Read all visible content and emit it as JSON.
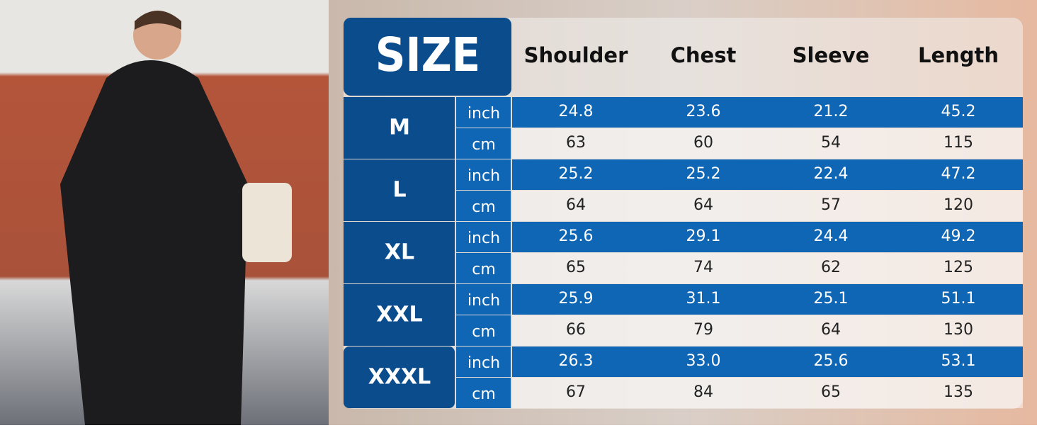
{
  "header": {
    "title": "SIZE",
    "columns": [
      "Shoulder",
      "Chest",
      "Sleeve",
      "Length"
    ]
  },
  "sizes": [
    {
      "label": "M",
      "rows": [
        {
          "unit": "inch",
          "values": [
            "24.8",
            "23.6",
            "21.2",
            "45.2"
          ]
        },
        {
          "unit": "cm",
          "values": [
            "63",
            "60",
            "54",
            "115"
          ]
        }
      ]
    },
    {
      "label": "L",
      "rows": [
        {
          "unit": "inch",
          "values": [
            "25.2",
            "25.2",
            "22.4",
            "47.2"
          ]
        },
        {
          "unit": "cm",
          "values": [
            "64",
            "64",
            "57",
            "120"
          ]
        }
      ]
    },
    {
      "label": "XL",
      "rows": [
        {
          "unit": "inch",
          "values": [
            "25.6",
            "29.1",
            "24.4",
            "49.2"
          ]
        },
        {
          "unit": "cm",
          "values": [
            "65",
            "74",
            "62",
            "125"
          ]
        }
      ]
    },
    {
      "label": "XXL",
      "rows": [
        {
          "unit": "inch",
          "values": [
            "25.9",
            "31.1",
            "25.1",
            "51.1"
          ]
        },
        {
          "unit": "cm",
          "values": [
            "66",
            "79",
            "64",
            "130"
          ]
        }
      ]
    },
    {
      "label": "XXXL",
      "rows": [
        {
          "unit": "inch",
          "values": [
            "26.3",
            "33.0",
            "25.6",
            "53.1"
          ]
        },
        {
          "unit": "cm",
          "values": [
            "67",
            "84",
            "65",
            "135"
          ]
        }
      ]
    }
  ]
}
